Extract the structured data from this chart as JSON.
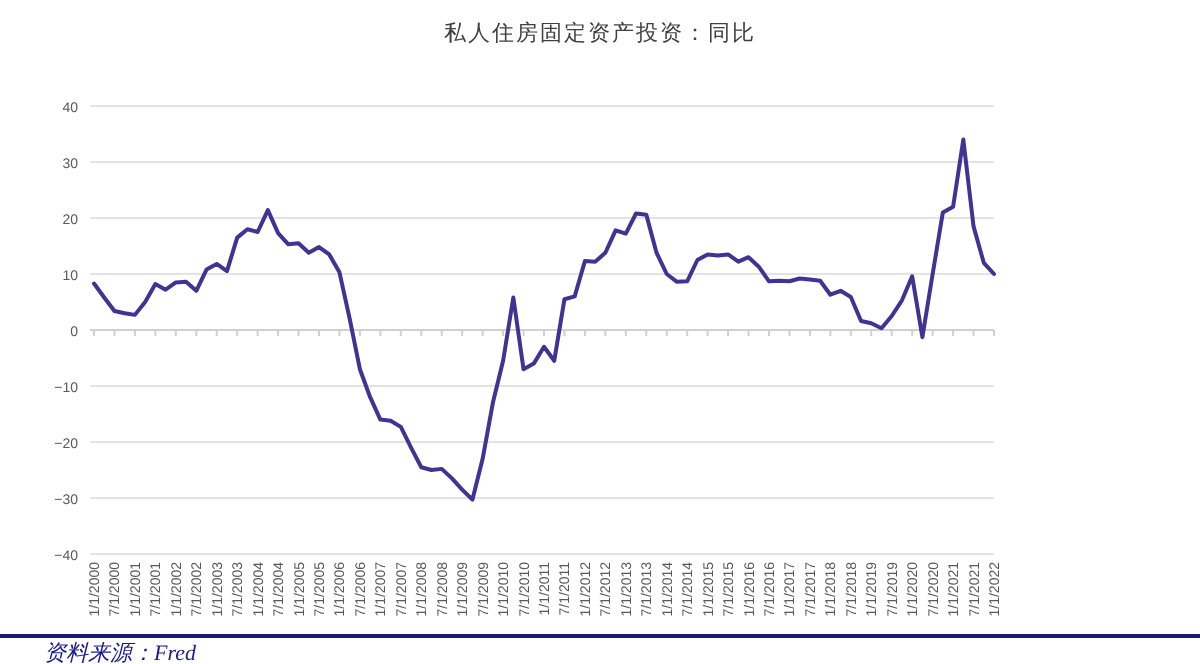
{
  "chart_data": {
    "type": "line",
    "title": "私人住房固定资产投资：同比",
    "categories": [
      "1/1/2000",
      null,
      "7/1/2000",
      null,
      "1/1/2001",
      null,
      "7/1/2001",
      null,
      "1/1/2002",
      null,
      "7/1/2002",
      null,
      "1/1/2003",
      null,
      "7/1/2003",
      null,
      "1/1/2004",
      null,
      "7/1/2004",
      null,
      "1/1/2005",
      null,
      "7/1/2005",
      null,
      "1/1/2006",
      null,
      "7/1/2006",
      null,
      "1/1/2007",
      null,
      "7/1/2007",
      null,
      "1/1/2008",
      null,
      "7/1/2008",
      null,
      "1/1/2009",
      null,
      "7/1/2009",
      null,
      "1/1/2010",
      null,
      "7/1/2010",
      null,
      "1/1/2011",
      null,
      "7/1/2011",
      null,
      "1/1/2012",
      null,
      "7/1/2012",
      null,
      "1/1/2013",
      null,
      "7/1/2013",
      null,
      "1/1/2014",
      null,
      "7/1/2014",
      null,
      "1/1/2015",
      null,
      "7/1/2015",
      null,
      "1/1/2016",
      null,
      "7/1/2016",
      null,
      "1/1/2017",
      null,
      "7/1/2017",
      null,
      "1/1/2018",
      null,
      "7/1/2018",
      null,
      "1/1/2019",
      null,
      "7/1/2019",
      null,
      "1/1/2020",
      null,
      "7/1/2020",
      null,
      "1/1/2021",
      null,
      "7/1/2021",
      null,
      "1/1/2022"
    ],
    "values": [
      8.3,
      5.8,
      3.4,
      3.0,
      2.7,
      5.0,
      8.2,
      7.2,
      8.5,
      8.6,
      7.0,
      10.8,
      11.8,
      10.5,
      16.5,
      18.0,
      17.5,
      21.4,
      17.3,
      15.3,
      15.5,
      13.8,
      14.8,
      13.5,
      10.3,
      2.0,
      -7.0,
      -12.0,
      -16.0,
      -16.2,
      -17.3,
      -21.0,
      -24.5,
      -25.0,
      -24.8,
      -26.5,
      -28.5,
      -30.3,
      -23.0,
      -13.0,
      -5.5,
      5.8,
      -7.0,
      -6.0,
      -3.0,
      -5.5,
      5.5,
      6.0,
      12.3,
      12.2,
      13.8,
      17.8,
      17.2,
      20.8,
      20.6,
      13.8,
      10.0,
      8.6,
      8.7,
      12.5,
      13.5,
      13.3,
      13.5,
      12.2,
      13.0,
      11.3,
      8.7,
      8.8,
      8.7,
      9.2,
      9.0,
      8.8,
      6.3,
      7.0,
      5.9,
      1.6,
      1.2,
      0.3,
      2.5,
      5.3,
      9.6,
      -1.3,
      10.0,
      21.0,
      22.0,
      34.0,
      18.5,
      12.0,
      10.0
    ],
    "color": "#3f3393",
    "ylim": [
      -40,
      40
    ],
    "yticks": [
      -40,
      -30,
      -20,
      -10,
      0,
      10,
      20,
      30,
      40
    ],
    "grid": "y",
    "marker": "none",
    "line_style": "solid",
    "annotations": [
      "资料来源：Fred"
    ]
  }
}
